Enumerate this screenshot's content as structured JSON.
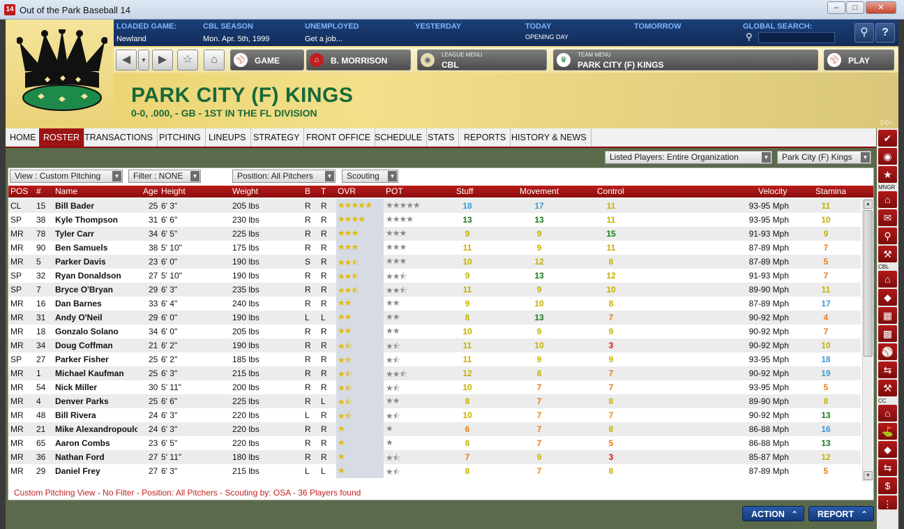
{
  "window": {
    "title": "Out of the Park Baseball 14",
    "icon": "14"
  },
  "header": {
    "loaded_game": {
      "label": "LOADED GAME:",
      "value": "Newland"
    },
    "season": {
      "label": "CBL SEASON",
      "value": "Mon. Apr. 5th, 1999"
    },
    "unemployed": {
      "label": "UNEMPLOYED",
      "value": "Get a job..."
    },
    "yesterday": {
      "label": "YESTERDAY",
      "value": ""
    },
    "today": {
      "label": "TODAY",
      "value": "OPENING DAY"
    },
    "tomorrow": {
      "label": "TOMORROW",
      "value": ""
    },
    "global_search": {
      "label": "GLOBAL SEARCH:",
      "placeholder": ""
    }
  },
  "nav": {
    "game_label": "GAME",
    "manager_label": "B. MORRISON",
    "league_menu_small": "LEAGUE MENU",
    "league_menu_value": "CBL",
    "team_menu_small": "TEAM MENU",
    "team_menu_value": "PARK CITY (F) KINGS",
    "play_label": "PLAY"
  },
  "team": {
    "name": "PARK CITY (F) KINGS",
    "record": "0-0, .000, - GB - 1ST IN THE FL DIVISION"
  },
  "tabs": [
    "HOME",
    "ROSTER",
    "TRANSACTIONS",
    "PITCHING",
    "LINEUPS",
    "STRATEGY",
    "FRONT OFFICE",
    "SCHEDULE",
    "STATS",
    "REPORTS",
    "HISTORY & NEWS"
  ],
  "filters": {
    "listed_players": "Listed Players: Entire Organization",
    "team_select": "Park City (F) Kings",
    "view": "View : Custom Pitching",
    "filter": "Filter : NONE",
    "position": "Position: All Pitchers",
    "scouting": "Scouting"
  },
  "columns": [
    "POS",
    "#",
    "Name",
    "Age",
    "Height",
    "Weight",
    "B",
    "T",
    "OVR",
    "POT",
    "Stuff",
    "Movement",
    "Control",
    "Velocity",
    "Stamina"
  ],
  "rows": [
    {
      "pos": "CL",
      "num": "15",
      "name": "Bill Bader",
      "age": "25",
      "height": "6' 3\"",
      "weight": "205 lbs",
      "b": "R",
      "t": "R",
      "ovr": 5,
      "pot": 5,
      "stuff": "18",
      "movement": "17",
      "control": "11",
      "velocity": "93-95 Mph",
      "stamina": "11"
    },
    {
      "pos": "SP",
      "num": "38",
      "name": "Kyle Thompson",
      "age": "31",
      "height": "6' 6\"",
      "weight": "230 lbs",
      "b": "R",
      "t": "R",
      "ovr": 4,
      "pot": 4,
      "stuff": "13",
      "movement": "13",
      "control": "11",
      "velocity": "93-95 Mph",
      "stamina": "10"
    },
    {
      "pos": "MR",
      "num": "78",
      "name": "Tyler Carr",
      "age": "34",
      "height": "6' 5\"",
      "weight": "225 lbs",
      "b": "R",
      "t": "R",
      "ovr": 3,
      "pot": 3,
      "stuff": "9",
      "movement": "9",
      "control": "15",
      "velocity": "91-93 Mph",
      "stamina": "9"
    },
    {
      "pos": "MR",
      "num": "90",
      "name": "Ben Samuels",
      "age": "38",
      "height": "5' 10\"",
      "weight": "175 lbs",
      "b": "R",
      "t": "R",
      "ovr": 3,
      "pot": 3,
      "stuff": "11",
      "movement": "9",
      "control": "11",
      "velocity": "87-89 Mph",
      "stamina": "7"
    },
    {
      "pos": "MR",
      "num": "5",
      "name": "Parker Davis",
      "age": "23",
      "height": "6' 0\"",
      "weight": "190 lbs",
      "b": "S",
      "t": "R",
      "ovr": 2.5,
      "pot": 3,
      "stuff": "10",
      "movement": "12",
      "control": "8",
      "velocity": "87-89 Mph",
      "stamina": "5"
    },
    {
      "pos": "SP",
      "num": "32",
      "name": "Ryan Donaldson",
      "age": "27",
      "height": "5' 10\"",
      "weight": "190 lbs",
      "b": "R",
      "t": "R",
      "ovr": 2.5,
      "pot": 2.5,
      "stuff": "9",
      "movement": "13",
      "control": "12",
      "velocity": "91-93 Mph",
      "stamina": "7"
    },
    {
      "pos": "SP",
      "num": "7",
      "name": "Bryce O'Bryan",
      "age": "29",
      "height": "6' 3\"",
      "weight": "235 lbs",
      "b": "R",
      "t": "R",
      "ovr": 2.5,
      "pot": 2.5,
      "stuff": "11",
      "movement": "9",
      "control": "10",
      "velocity": "89-90 Mph",
      "stamina": "11"
    },
    {
      "pos": "MR",
      "num": "16",
      "name": "Dan Barnes",
      "age": "33",
      "height": "6' 4\"",
      "weight": "240 lbs",
      "b": "R",
      "t": "R",
      "ovr": 2,
      "pot": 2,
      "stuff": "9",
      "movement": "10",
      "control": "8",
      "velocity": "87-89 Mph",
      "stamina": "17"
    },
    {
      "pos": "MR",
      "num": "31",
      "name": "Andy O'Neil",
      "age": "29",
      "height": "6' 0\"",
      "weight": "190 lbs",
      "b": "L",
      "t": "L",
      "ovr": 2,
      "pot": 2,
      "stuff": "8",
      "movement": "13",
      "control": "7",
      "velocity": "90-92 Mph",
      "stamina": "4"
    },
    {
      "pos": "MR",
      "num": "18",
      "name": "Gonzalo Solano",
      "age": "34",
      "height": "6' 0\"",
      "weight": "205 lbs",
      "b": "R",
      "t": "R",
      "ovr": 2,
      "pot": 2,
      "stuff": "10",
      "movement": "9",
      "control": "9",
      "velocity": "90-92 Mph",
      "stamina": "7"
    },
    {
      "pos": "MR",
      "num": "34",
      "name": "Doug Coffman",
      "age": "21",
      "height": "6' 2\"",
      "weight": "190 lbs",
      "b": "R",
      "t": "R",
      "ovr": 1.5,
      "pot": 1.5,
      "stuff": "11",
      "movement": "10",
      "control": "3",
      "velocity": "90-92 Mph",
      "stamina": "10"
    },
    {
      "pos": "SP",
      "num": "27",
      "name": "Parker Fisher",
      "age": "25",
      "height": "6' 2\"",
      "weight": "185 lbs",
      "b": "R",
      "t": "R",
      "ovr": 1.5,
      "pot": 1.5,
      "stuff": "11",
      "movement": "9",
      "control": "9",
      "velocity": "93-95 Mph",
      "stamina": "18"
    },
    {
      "pos": "MR",
      "num": "1",
      "name": "Michael Kaufman",
      "age": "25",
      "height": "6' 3\"",
      "weight": "215 lbs",
      "b": "R",
      "t": "R",
      "ovr": 1.5,
      "pot": 2.5,
      "stuff": "12",
      "movement": "8",
      "control": "7",
      "velocity": "90-92 Mph",
      "stamina": "19"
    },
    {
      "pos": "MR",
      "num": "54",
      "name": "Nick Miller",
      "age": "30",
      "height": "5' 11\"",
      "weight": "200 lbs",
      "b": "R",
      "t": "R",
      "ovr": 1.5,
      "pot": 1.5,
      "stuff": "10",
      "movement": "7",
      "control": "7",
      "velocity": "93-95 Mph",
      "stamina": "5"
    },
    {
      "pos": "MR",
      "num": "4",
      "name": "Denver Parks",
      "age": "25",
      "height": "6' 6\"",
      "weight": "225 lbs",
      "b": "R",
      "t": "L",
      "ovr": 1.5,
      "pot": 2,
      "stuff": "8",
      "movement": "7",
      "control": "8",
      "velocity": "89-90 Mph",
      "stamina": "8"
    },
    {
      "pos": "MR",
      "num": "48",
      "name": "Bill Rivera",
      "age": "24",
      "height": "6' 3\"",
      "weight": "220 lbs",
      "b": "L",
      "t": "R",
      "ovr": 1.5,
      "pot": 1.5,
      "stuff": "10",
      "movement": "7",
      "control": "7",
      "velocity": "90-92 Mph",
      "stamina": "13"
    },
    {
      "pos": "MR",
      "num": "21",
      "name": "Mike Alexandropoulos",
      "age": "24",
      "height": "6' 3\"",
      "weight": "220 lbs",
      "b": "R",
      "t": "R",
      "ovr": 1,
      "pot": 1,
      "stuff": "6",
      "movement": "7",
      "control": "8",
      "velocity": "86-88 Mph",
      "stamina": "16"
    },
    {
      "pos": "MR",
      "num": "65",
      "name": "Aaron Combs",
      "age": "23",
      "height": "6' 5\"",
      "weight": "220 lbs",
      "b": "R",
      "t": "R",
      "ovr": 1,
      "pot": 1,
      "stuff": "8",
      "movement": "7",
      "control": "5",
      "velocity": "86-88 Mph",
      "stamina": "13"
    },
    {
      "pos": "MR",
      "num": "36",
      "name": "Nathan Ford",
      "age": "27",
      "height": "5' 11\"",
      "weight": "180 lbs",
      "b": "R",
      "t": "R",
      "ovr": 1,
      "pot": 1.5,
      "stuff": "7",
      "movement": "9",
      "control": "3",
      "velocity": "85-87 Mph",
      "stamina": "12"
    },
    {
      "pos": "MR",
      "num": "29",
      "name": "Daniel Frey",
      "age": "27",
      "height": "6' 3\"",
      "weight": "215 lbs",
      "b": "L",
      "t": "L",
      "ovr": 1,
      "pot": 1.5,
      "stuff": "8",
      "movement": "7",
      "control": "8",
      "velocity": "87-89 Mph",
      "stamina": "5"
    }
  ],
  "status": "Custom Pitching View - No Filter - Position: All Pitchers - Scouting by: OSA - 36 Players found",
  "bottom": {
    "action": "ACTION",
    "report": "REPORT"
  },
  "sidebar_labels": {
    "mngr": "MNGR",
    "cbl": "CBL",
    "cc": "CC"
  },
  "icons": {
    "sidebar": [
      "check-icon",
      "globe-icon",
      "star-icon",
      "home-icon",
      "mail-icon",
      "search-icon",
      "wrench-icon",
      "home-icon",
      "diamond-icon",
      "calendar-icon",
      "chart-icon",
      "baseball-icon",
      "transfer-icon",
      "wrench-icon",
      "home-icon",
      "stadium-icon",
      "diamond-icon",
      "transfer-icon",
      "dollar-icon"
    ]
  },
  "colors": {
    "accent_red": "#9c1313",
    "header_blue": "#122c5a",
    "team_green": "#17693a"
  }
}
